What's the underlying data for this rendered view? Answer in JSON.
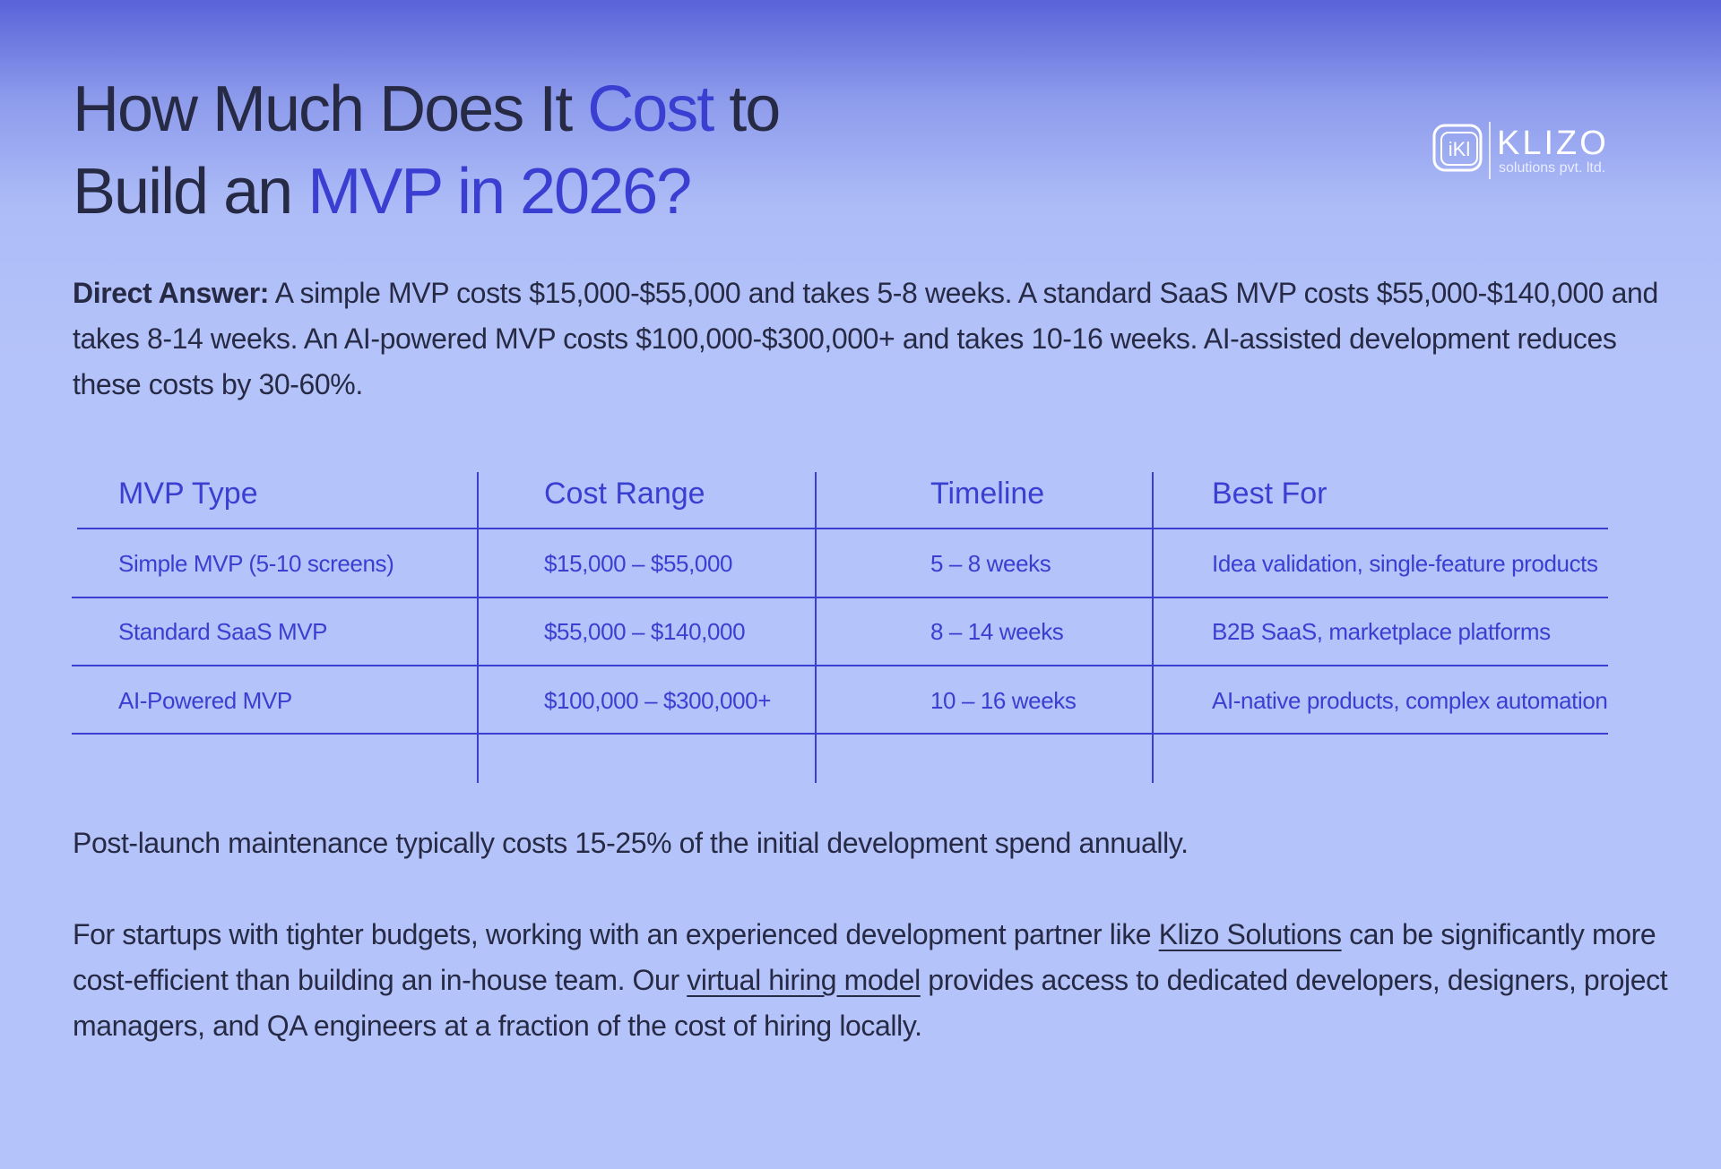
{
  "header": {
    "title": {
      "line1": [
        "How Much Does It",
        "Cost",
        "to"
      ],
      "line2": [
        "Build an",
        "MVP in 2026?"
      ]
    },
    "logo": {
      "name": "KLIZO",
      "tagline": "solutions pvt. ltd."
    }
  },
  "intro": {
    "label": "Direct Answer:",
    "text": "A simple MVP costs $15,000-$55,000 and takes 5-8 weeks. A standard SaaS MVP costs $55,000-$140,000 and takes 8-14 weeks. An AI-powered MVP costs $100,000-$300,000+ and takes 10-16 weeks. AI-assisted development reduces these costs by 30-60%."
  },
  "table": {
    "columns": [
      "MVP Type",
      "Cost Range",
      "Timeline",
      "Best For"
    ],
    "rows": [
      [
        "Simple MVP (5-10 screens)",
        "$15,000 – $55,000",
        "5 – 8 weeks",
        "Idea validation, single-feature products"
      ],
      [
        "Standard SaaS MVP",
        "$55,000 – $140,000",
        "8 – 14 weeks",
        "B2B SaaS, marketplace platforms"
      ],
      [
        "AI-Powered MVP",
        "$100,000 – $300,000+",
        "10 – 16 weeks",
        "AI-native products, complex automation"
      ]
    ]
  },
  "maintenance": "Post-launch maintenance typically costs 15-25% of the initial development spend annually.",
  "partner": {
    "parts": [
      "For startups with tighter budgets, working with an experienced development partner like",
      "Klizo Solutions",
      "can be significantly more cost-efficient than building an in-house team. Our",
      "virtual hiring model",
      "provides access to dedicated developers, designers, project managers, and QA engineers at a fraction of the cost of hiring locally."
    ]
  }
}
